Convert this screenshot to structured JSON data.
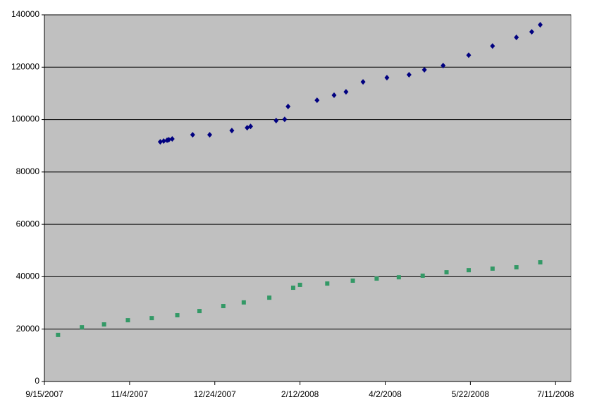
{
  "chart_data": {
    "type": "scatter",
    "xlim": [
      "2007-09-15",
      "2008-07-20"
    ],
    "xticks": [
      {
        "value": "2007-09-15",
        "label": "9/15/2007"
      },
      {
        "value": "2007-11-04",
        "label": "11/4/2007"
      },
      {
        "value": "2007-12-24",
        "label": "12/24/2007"
      },
      {
        "value": "2008-02-12",
        "label": "2/12/2008"
      },
      {
        "value": "2008-04-02",
        "label": "4/2/2008"
      },
      {
        "value": "2008-05-22",
        "label": "5/22/2008"
      },
      {
        "value": "2008-07-11",
        "label": "7/11/2008"
      }
    ],
    "ylim": [
      0,
      140000
    ],
    "yticks": [
      0,
      20000,
      40000,
      60000,
      80000,
      100000,
      120000,
      140000
    ],
    "grid": true,
    "plot_background": "#c0c0c0",
    "series": [
      {
        "color": "#000080",
        "marker": "diamond",
        "x": [
          "2007-11-22",
          "2007-11-24",
          "2007-11-26",
          "2007-11-27",
          "2007-11-29",
          "2007-12-11",
          "2007-12-21",
          "2008-01-03",
          "2008-01-12",
          "2008-01-14",
          "2008-01-29",
          "2008-02-03",
          "2008-02-05",
          "2008-02-22",
          "2008-03-03",
          "2008-03-10",
          "2008-03-20",
          "2008-04-03",
          "2008-04-16",
          "2008-04-25",
          "2008-05-06",
          "2008-05-21",
          "2008-06-04",
          "2008-06-18",
          "2008-06-27",
          "2008-07-02"
        ],
        "values": [
          91500,
          91800,
          92100,
          92300,
          92600,
          94200,
          94200,
          95800,
          96900,
          97400,
          99600,
          100100,
          105000,
          107400,
          109300,
          110600,
          114400,
          116000,
          117100,
          119000,
          120600,
          124600,
          128100,
          131400,
          133500,
          136200
        ]
      },
      {
        "color": "#339966",
        "marker": "square",
        "x": [
          "2007-09-23",
          "2007-10-07",
          "2007-10-20",
          "2007-11-03",
          "2007-11-17",
          "2007-12-02",
          "2007-12-15",
          "2007-12-29",
          "2008-01-10",
          "2008-01-25",
          "2008-02-08",
          "2008-02-12",
          "2008-02-28",
          "2008-03-14",
          "2008-03-28",
          "2008-04-10",
          "2008-04-24",
          "2008-05-08",
          "2008-05-21",
          "2008-06-04",
          "2008-06-18",
          "2008-07-02"
        ],
        "values": [
          17800,
          20700,
          21800,
          23400,
          24200,
          25300,
          26900,
          28800,
          30200,
          32000,
          35800,
          36900,
          37400,
          38500,
          39300,
          39800,
          40400,
          41700,
          42500,
          43100,
          43600,
          45500
        ]
      }
    ]
  }
}
